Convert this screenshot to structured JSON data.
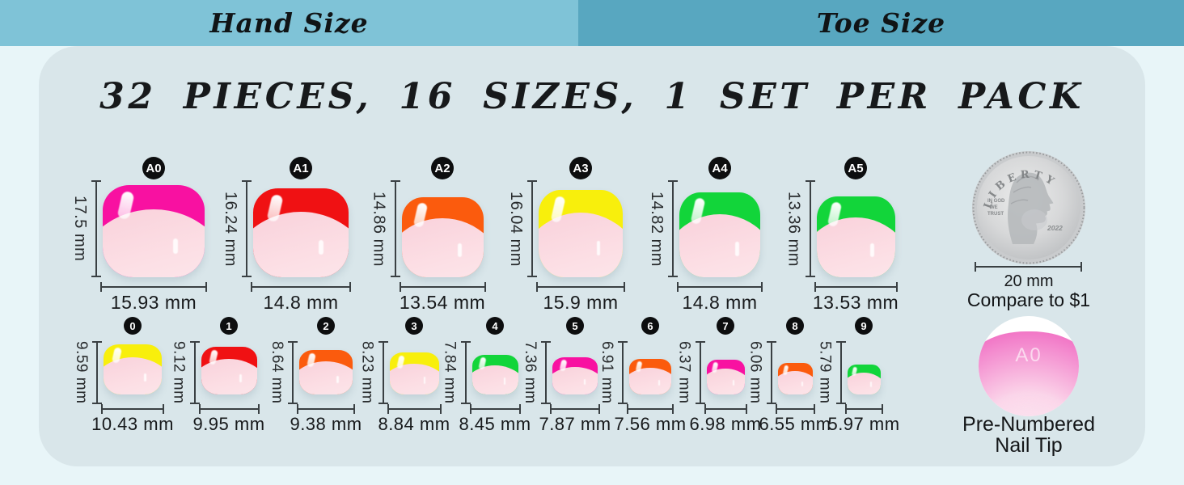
{
  "tabs": [
    {
      "label": "Hand Size",
      "active": false
    },
    {
      "label": "Toe Size",
      "active": true
    }
  ],
  "title": "32 PIECES, 16 SIZES, 1 SET PER PACK",
  "colors": {
    "tab_inactive": "#7fc3d7",
    "tab_active": "#58a7c0",
    "panel": "#d9e6ea",
    "background": "#e8f5f8",
    "badge": "#0d0e0f",
    "measure_line": "#3a4043",
    "nail_body_pink": "#fcdfe5",
    "tip_magenta": "#f811a1",
    "tip_red": "#f01113",
    "tip_orange": "#fb5b0d",
    "tip_yellow": "#f8ef0c",
    "tip_green": "#12d53a"
  },
  "large_sizes": [
    {
      "id": "A0",
      "height": "17.5 mm",
      "width": "15.93 mm",
      "tip_color": "#f811a1"
    },
    {
      "id": "A1",
      "height": "16.24 mm",
      "width": "14.8 mm",
      "tip_color": "#f01113"
    },
    {
      "id": "A2",
      "height": "14.86 mm",
      "width": "13.54 mm",
      "tip_color": "#fb5b0d"
    },
    {
      "id": "A3",
      "height": "16.04 mm",
      "width": "15.9 mm",
      "tip_color": "#f8ef0c"
    },
    {
      "id": "A4",
      "height": "14.82 mm",
      "width": "14.8 mm",
      "tip_color": "#12d53a"
    },
    {
      "id": "A5",
      "height": "13.36 mm",
      "width": "13.53 mm",
      "tip_color": "#12d53a"
    }
  ],
  "small_sizes": [
    {
      "id": "0",
      "height": "9.59 mm",
      "width": "10.43 mm",
      "tip_color": "#f8ef0c"
    },
    {
      "id": "1",
      "height": "9.12 mm",
      "width": "9.95 mm",
      "tip_color": "#f01113"
    },
    {
      "id": "2",
      "height": "8.64 mm",
      "width": "9.38 mm",
      "tip_color": "#fb5b0d"
    },
    {
      "id": "3",
      "height": "8.23 mm",
      "width": "8.84 mm",
      "tip_color": "#f8ef0c"
    },
    {
      "id": "4",
      "height": "7.84 mm",
      "width": "8.45 mm",
      "tip_color": "#12d53a"
    },
    {
      "id": "5",
      "height": "7.36 mm",
      "width": "7.87 mm",
      "tip_color": "#f811a1"
    },
    {
      "id": "6",
      "height": "6.91 mm",
      "width": "7.56 mm",
      "tip_color": "#fb5b0d"
    },
    {
      "id": "7",
      "height": "6.37 mm",
      "width": "6.98 mm",
      "tip_color": "#f811a1"
    },
    {
      "id": "8",
      "height": "6.06 mm",
      "width": "6.55 mm",
      "tip_color": "#fb5b0d"
    },
    {
      "id": "9",
      "height": "5.79 mm",
      "width": "5.97 mm",
      "tip_color": "#12d53a"
    }
  ],
  "coin": {
    "top_text": "LIBERTY",
    "motto_lines": [
      "IN GOD",
      "WE",
      "TRUST"
    ],
    "year": "2022",
    "scale_label": "20 mm",
    "caption": "Compare to $1"
  },
  "tip_sample": {
    "label": "A0",
    "caption_line1": "Pre-Numbered",
    "caption_line2": "Nail Tip"
  }
}
